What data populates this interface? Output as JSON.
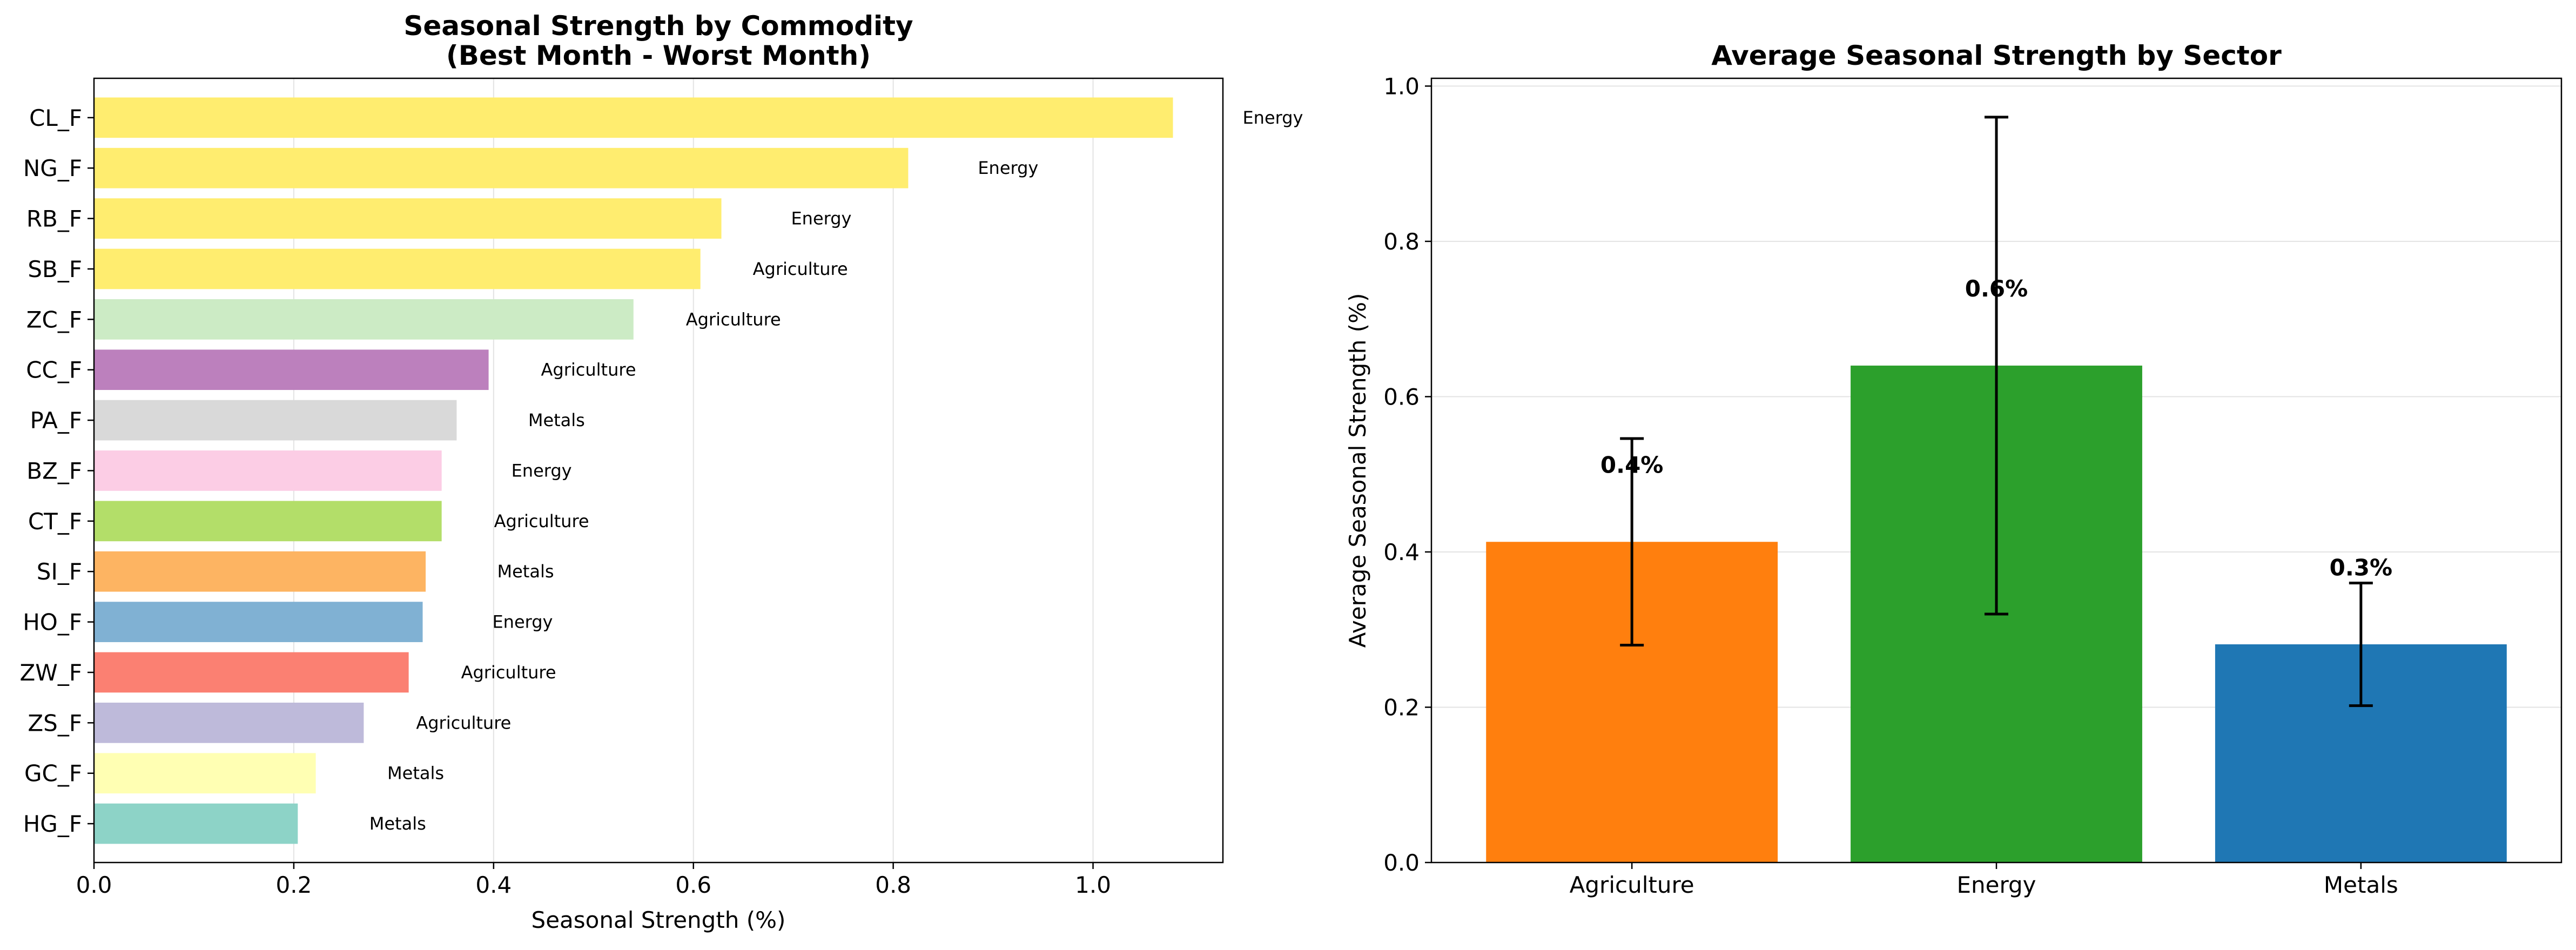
{
  "chart_data": [
    {
      "type": "bar",
      "orientation": "horizontal",
      "title": "Seasonal Strength by Commodity\n(Best Month - Worst Month)",
      "xlabel": "Seasonal Strength (%)",
      "ylabel": "",
      "xlim": [
        0,
        1.13
      ],
      "xticks": [
        "0.0",
        "0.2",
        "0.4",
        "0.6",
        "0.8",
        "1.0"
      ],
      "grid": true,
      "categories": [
        "CL_F",
        "NG_F",
        "RB_F",
        "SB_F",
        "ZC_F",
        "CC_F",
        "PA_F",
        "BZ_F",
        "CT_F",
        "SI_F",
        "HO_F",
        "ZW_F",
        "ZS_F",
        "GC_F",
        "HG_F"
      ],
      "values": [
        1.08,
        0.815,
        0.628,
        0.607,
        0.54,
        0.395,
        0.363,
        0.348,
        0.348,
        0.332,
        0.329,
        0.315,
        0.27,
        0.222,
        0.204
      ],
      "bar_labels": [
        "Energy",
        "Energy",
        "Energy",
        "Agriculture",
        "Agriculture",
        "Agriculture",
        "Metals",
        "Energy",
        "Agriculture",
        "Metals",
        "Energy",
        "Agriculture",
        "Agriculture",
        "Metals",
        "Metals"
      ],
      "colors": [
        "#ffed6f",
        "#ffed6f",
        "#ffed6f",
        "#ffed6f",
        "#ccebc5",
        "#bc80bd",
        "#d9d9d9",
        "#fccde5",
        "#b3de69",
        "#fdb462",
        "#80b1d3",
        "#fb8072",
        "#bebada",
        "#ffffb3",
        "#8dd3c7"
      ]
    },
    {
      "type": "bar",
      "title": "Average Seasonal Strength by Sector",
      "xlabel": "",
      "ylabel": "Average Seasonal Strength (%)",
      "ylim": [
        0,
        1.01
      ],
      "yticks": [
        "0.0",
        "0.2",
        "0.4",
        "0.6",
        "0.8",
        "1.0"
      ],
      "grid": true,
      "categories": [
        "Agriculture",
        "Energy",
        "Metals"
      ],
      "values": [
        0.413,
        0.64,
        0.281
      ],
      "errors": [
        0.133,
        0.32,
        0.079
      ],
      "value_labels": [
        "0.4%",
        "0.6%",
        "0.3%"
      ],
      "colors": [
        "#ff7f0e",
        "#2ca02c",
        "#1f77b4"
      ]
    }
  ]
}
